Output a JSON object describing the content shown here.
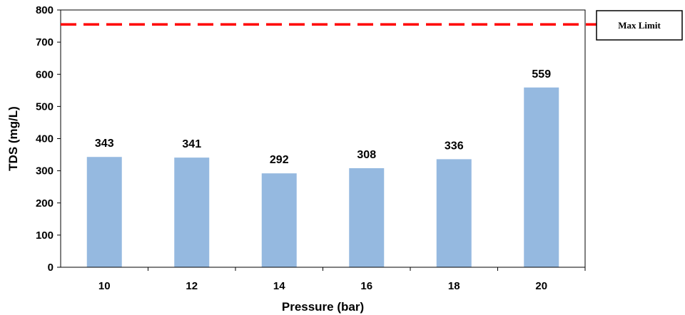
{
  "chart_data": {
    "type": "bar",
    "categories": [
      "10",
      "12",
      "14",
      "16",
      "18",
      "20"
    ],
    "values": [
      343,
      341,
      292,
      308,
      336,
      559
    ],
    "data_labels": [
      "343",
      "341",
      "292",
      "308",
      "336",
      "559"
    ],
    "xlabel": "Pressure (bar)",
    "ylabel": "TDS (mg/L)",
    "ylim": [
      0,
      800
    ],
    "yticks": [
      0,
      100,
      200,
      300,
      400,
      500,
      600,
      700,
      800
    ],
    "ytick_labels": [
      "0",
      "100",
      "200",
      "300",
      "400",
      "500",
      "600",
      "700",
      "800"
    ],
    "grid": false,
    "bar_color": "#95b9e0",
    "reference_line": {
      "label": "Max Limit",
      "value": 755,
      "color": "#ff0000",
      "style": "dashed"
    },
    "legend_placement": "top-right"
  }
}
